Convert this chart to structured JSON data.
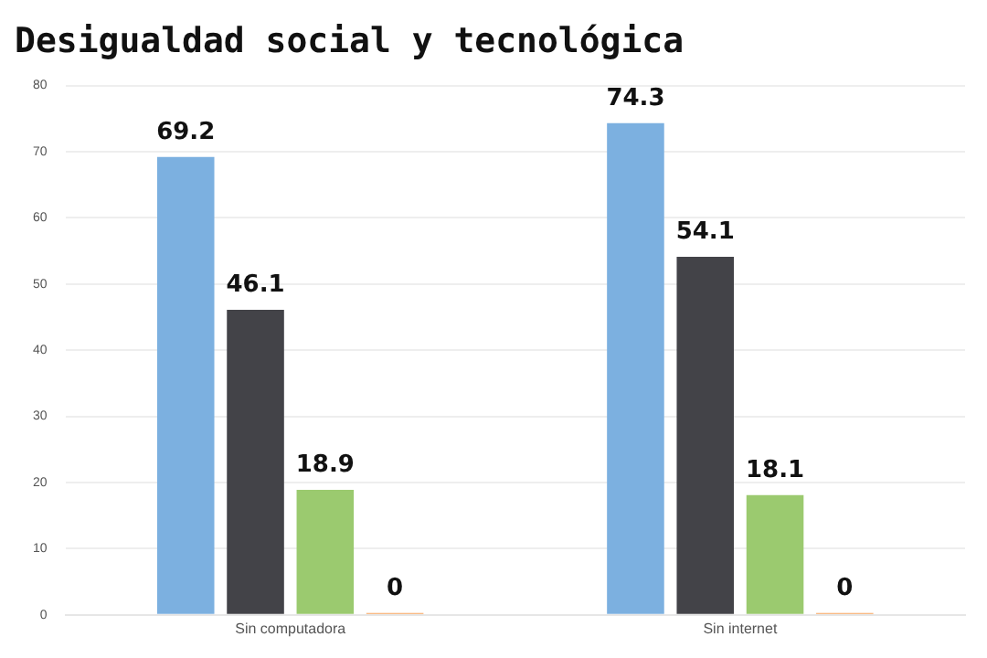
{
  "chart_data": {
    "type": "bar",
    "title": "Desigualdad social y tecnológica",
    "categories": [
      "Sin computadora",
      "Sin internet"
    ],
    "series": [
      {
        "color": "#7cb0e0",
        "values": [
          69.2,
          74.3
        ]
      },
      {
        "color": "#434348",
        "values": [
          46.1,
          54.1
        ]
      },
      {
        "color": "#9bca6f",
        "values": [
          18.9,
          18.1
        ]
      },
      {
        "color": "#f7a35c",
        "values": [
          0,
          0
        ]
      }
    ],
    "ylim": [
      0,
      80
    ],
    "yticks": [
      0,
      10,
      20,
      30,
      40,
      50,
      60,
      70,
      80
    ],
    "grid": "y",
    "data_labels": true,
    "legend": false
  }
}
